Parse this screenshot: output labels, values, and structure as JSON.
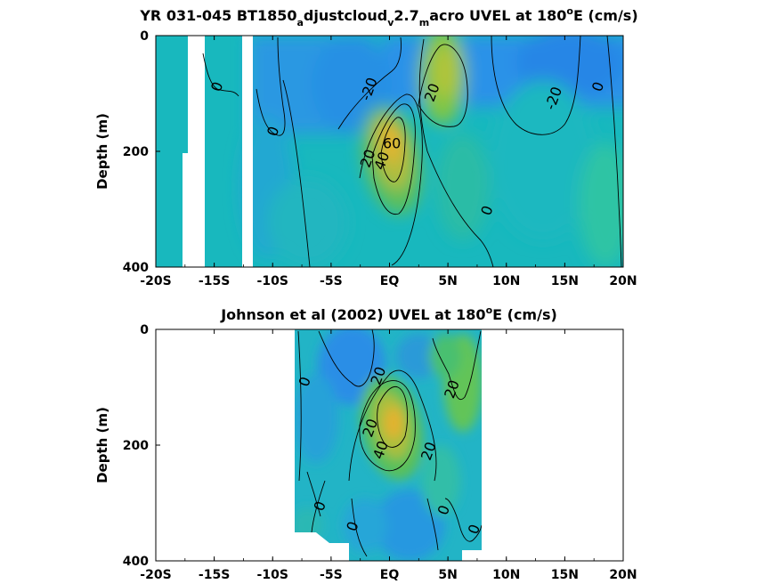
{
  "colors": {
    "blue": "#2196e6",
    "cyan": "#12bcbc",
    "teal": "#1cb9b4",
    "green": "#6ec44a",
    "yellow": "#e8b62e",
    "white": "#ffffff"
  },
  "chart_data": [
    {
      "type": "heatmap",
      "title": {
        "main": "YR 031-045 BT1850",
        "sub1": "a",
        "mid1": "djustcloud",
        "sub2": "v",
        "mid2": "2.7",
        "sub3": "m",
        "mid3": "acro UVEL at 180",
        "sup": "o",
        "tail": "E (cm/s)"
      },
      "xlabel": "",
      "ylabel": "Depth (m)",
      "x_ticks": [
        "-20S",
        "-15S",
        "-10S",
        "-5S",
        "EQ",
        "5N",
        "10N",
        "15N",
        "20N"
      ],
      "y_ticks": [
        "0",
        "200",
        "400"
      ],
      "xlim": [
        -20,
        20
      ],
      "ylim": [
        0,
        400
      ],
      "y_reversed": true,
      "core": {
        "lat": 0.3,
        "depth": 170,
        "value": 60
      },
      "contour_labels": [
        {
          "text": "0",
          "lat": -14.8,
          "depth": 88
        },
        {
          "text": "0",
          "lat": -10.0,
          "depth": 165
        },
        {
          "text": "-20",
          "lat": -1.8,
          "depth": 92
        },
        {
          "text": "20",
          "lat": 3.6,
          "depth": 98
        },
        {
          "text": "-20",
          "lat": 14.0,
          "depth": 108
        },
        {
          "text": "0",
          "lat": 17.8,
          "depth": 88
        },
        {
          "text": "60",
          "lat": 0.2,
          "depth": 185
        },
        {
          "text": "20",
          "lat": -1.9,
          "depth": 212
        },
        {
          "text": "40",
          "lat": -0.7,
          "depth": 216
        },
        {
          "text": "0",
          "lat": 8.3,
          "depth": 302
        }
      ]
    },
    {
      "type": "heatmap",
      "title": {
        "main": "Johnson et al (2002) UVEL at 180",
        "sup": "o",
        "tail": "E (cm/s)"
      },
      "xlabel": "",
      "ylabel": "Depth (m)",
      "x_ticks": [
        "-20S",
        "-15S",
        "-10S",
        "-5S",
        "EQ",
        "5N",
        "10N",
        "15N",
        "20N"
      ],
      "y_ticks": [
        "0",
        "200",
        "400"
      ],
      "xlim": [
        -20,
        20
      ],
      "ylim": [
        0,
        400
      ],
      "y_reversed": true,
      "data_extent_lat": [
        -8,
        8
      ],
      "core": {
        "lat": 0.4,
        "depth": 165,
        "value": 40
      },
      "contour_labels": [
        {
          "text": "0",
          "lat": -7.3,
          "depth": 90
        },
        {
          "text": "20",
          "lat": -1.0,
          "depth": 80
        },
        {
          "text": "20",
          "lat": 5.3,
          "depth": 103
        },
        {
          "text": "20",
          "lat": -1.7,
          "depth": 170
        },
        {
          "text": "40",
          "lat": -0.8,
          "depth": 208
        },
        {
          "text": "20",
          "lat": 3.3,
          "depth": 210
        },
        {
          "text": "0",
          "lat": -6.0,
          "depth": 305
        },
        {
          "text": "0",
          "lat": -3.2,
          "depth": 340
        },
        {
          "text": "0",
          "lat": 4.6,
          "depth": 312
        },
        {
          "text": "0",
          "lat": 7.2,
          "depth": 345
        }
      ]
    }
  ]
}
